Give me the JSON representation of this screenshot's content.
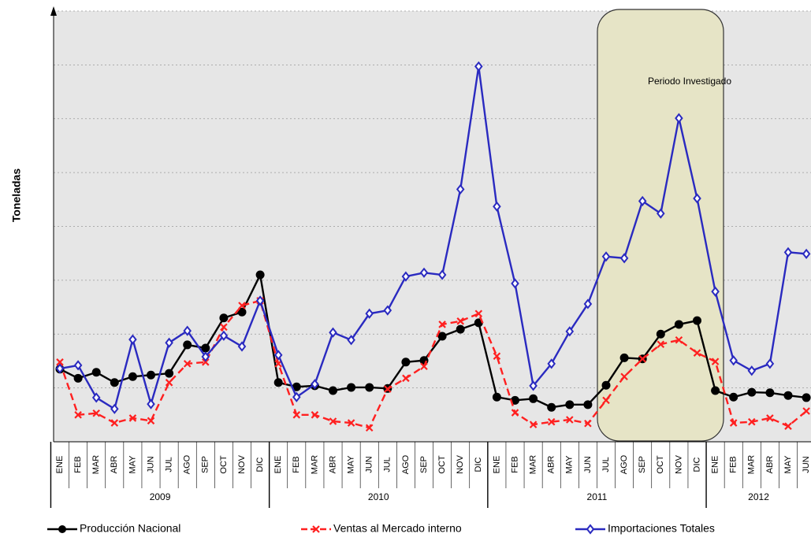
{
  "chart_data": {
    "type": "line",
    "y_label": "Toneladas",
    "annotation": "Periodo Investigado",
    "categories": [
      "ENE",
      "FEB",
      "MAR",
      "ABR",
      "MAY",
      "JUN",
      "JUL",
      "AGO",
      "SEP",
      "OCT",
      "NOV",
      "DIC",
      "ENE",
      "FEB",
      "MAR",
      "ABR",
      "MAY",
      "JUN",
      "JUL",
      "AGO",
      "SEP",
      "OCT",
      "NOV",
      "DIC",
      "ENE",
      "FEB",
      "MAR",
      "ABR",
      "MAY",
      "JUN",
      "JUL",
      "AGO",
      "SEP",
      "OCT",
      "NOV",
      "DIC",
      "ENE",
      "FEB",
      "MAR",
      "ABR",
      "MAY",
      "JUN"
    ],
    "groups": [
      "2009",
      "2010",
      "2011",
      "2012"
    ],
    "ylim": [
      0,
      8
    ],
    "yticks": [
      0,
      1,
      2,
      3,
      4,
      5,
      6,
      7,
      8
    ],
    "grid": true,
    "series": [
      {
        "name": "Producción Nacional",
        "color": "#000000",
        "marker": "circle",
        "values": [
          1.35,
          1.18,
          1.29,
          1.1,
          1.21,
          1.24,
          1.27,
          1.8,
          1.74,
          2.3,
          2.41,
          3.1,
          1.1,
          1.02,
          1.04,
          0.95,
          1.01,
          1.01,
          0.99,
          1.48,
          1.51,
          1.96,
          2.09,
          2.21,
          0.83,
          0.77,
          0.8,
          0.64,
          0.69,
          0.69,
          1.05,
          1.56,
          1.54,
          2.0,
          2.18,
          2.25,
          0.95,
          0.83,
          0.92,
          0.91,
          0.86,
          0.82
        ]
      },
      {
        "name": "Ventas al Mercado interno",
        "color": "#ff2020",
        "marker": "x",
        "values": [
          1.48,
          0.5,
          0.53,
          0.35,
          0.44,
          0.39,
          1.1,
          1.45,
          1.48,
          2.13,
          2.53,
          2.62,
          1.45,
          0.5,
          0.5,
          0.38,
          0.35,
          0.26,
          0.98,
          1.18,
          1.4,
          2.18,
          2.24,
          2.38,
          1.59,
          0.54,
          0.32,
          0.37,
          0.41,
          0.34,
          0.77,
          1.21,
          1.54,
          1.81,
          1.89,
          1.65,
          1.49,
          0.35,
          0.37,
          0.44,
          0.29,
          0.57
        ]
      },
      {
        "name": "Importaciones Totales",
        "color": "#2a2ac0",
        "marker": "diamond",
        "values": [
          1.36,
          1.42,
          0.82,
          0.61,
          1.9,
          0.7,
          1.84,
          2.06,
          1.58,
          1.97,
          1.77,
          2.62,
          1.61,
          0.83,
          1.07,
          2.03,
          1.89,
          2.38,
          2.44,
          3.07,
          3.14,
          3.1,
          4.69,
          6.97,
          4.37,
          2.94,
          1.04,
          1.45,
          2.05,
          2.56,
          3.44,
          3.41,
          4.47,
          4.24,
          6.01,
          4.52,
          2.79,
          1.51,
          1.32,
          1.45,
          3.52,
          3.49
        ]
      }
    ]
  }
}
